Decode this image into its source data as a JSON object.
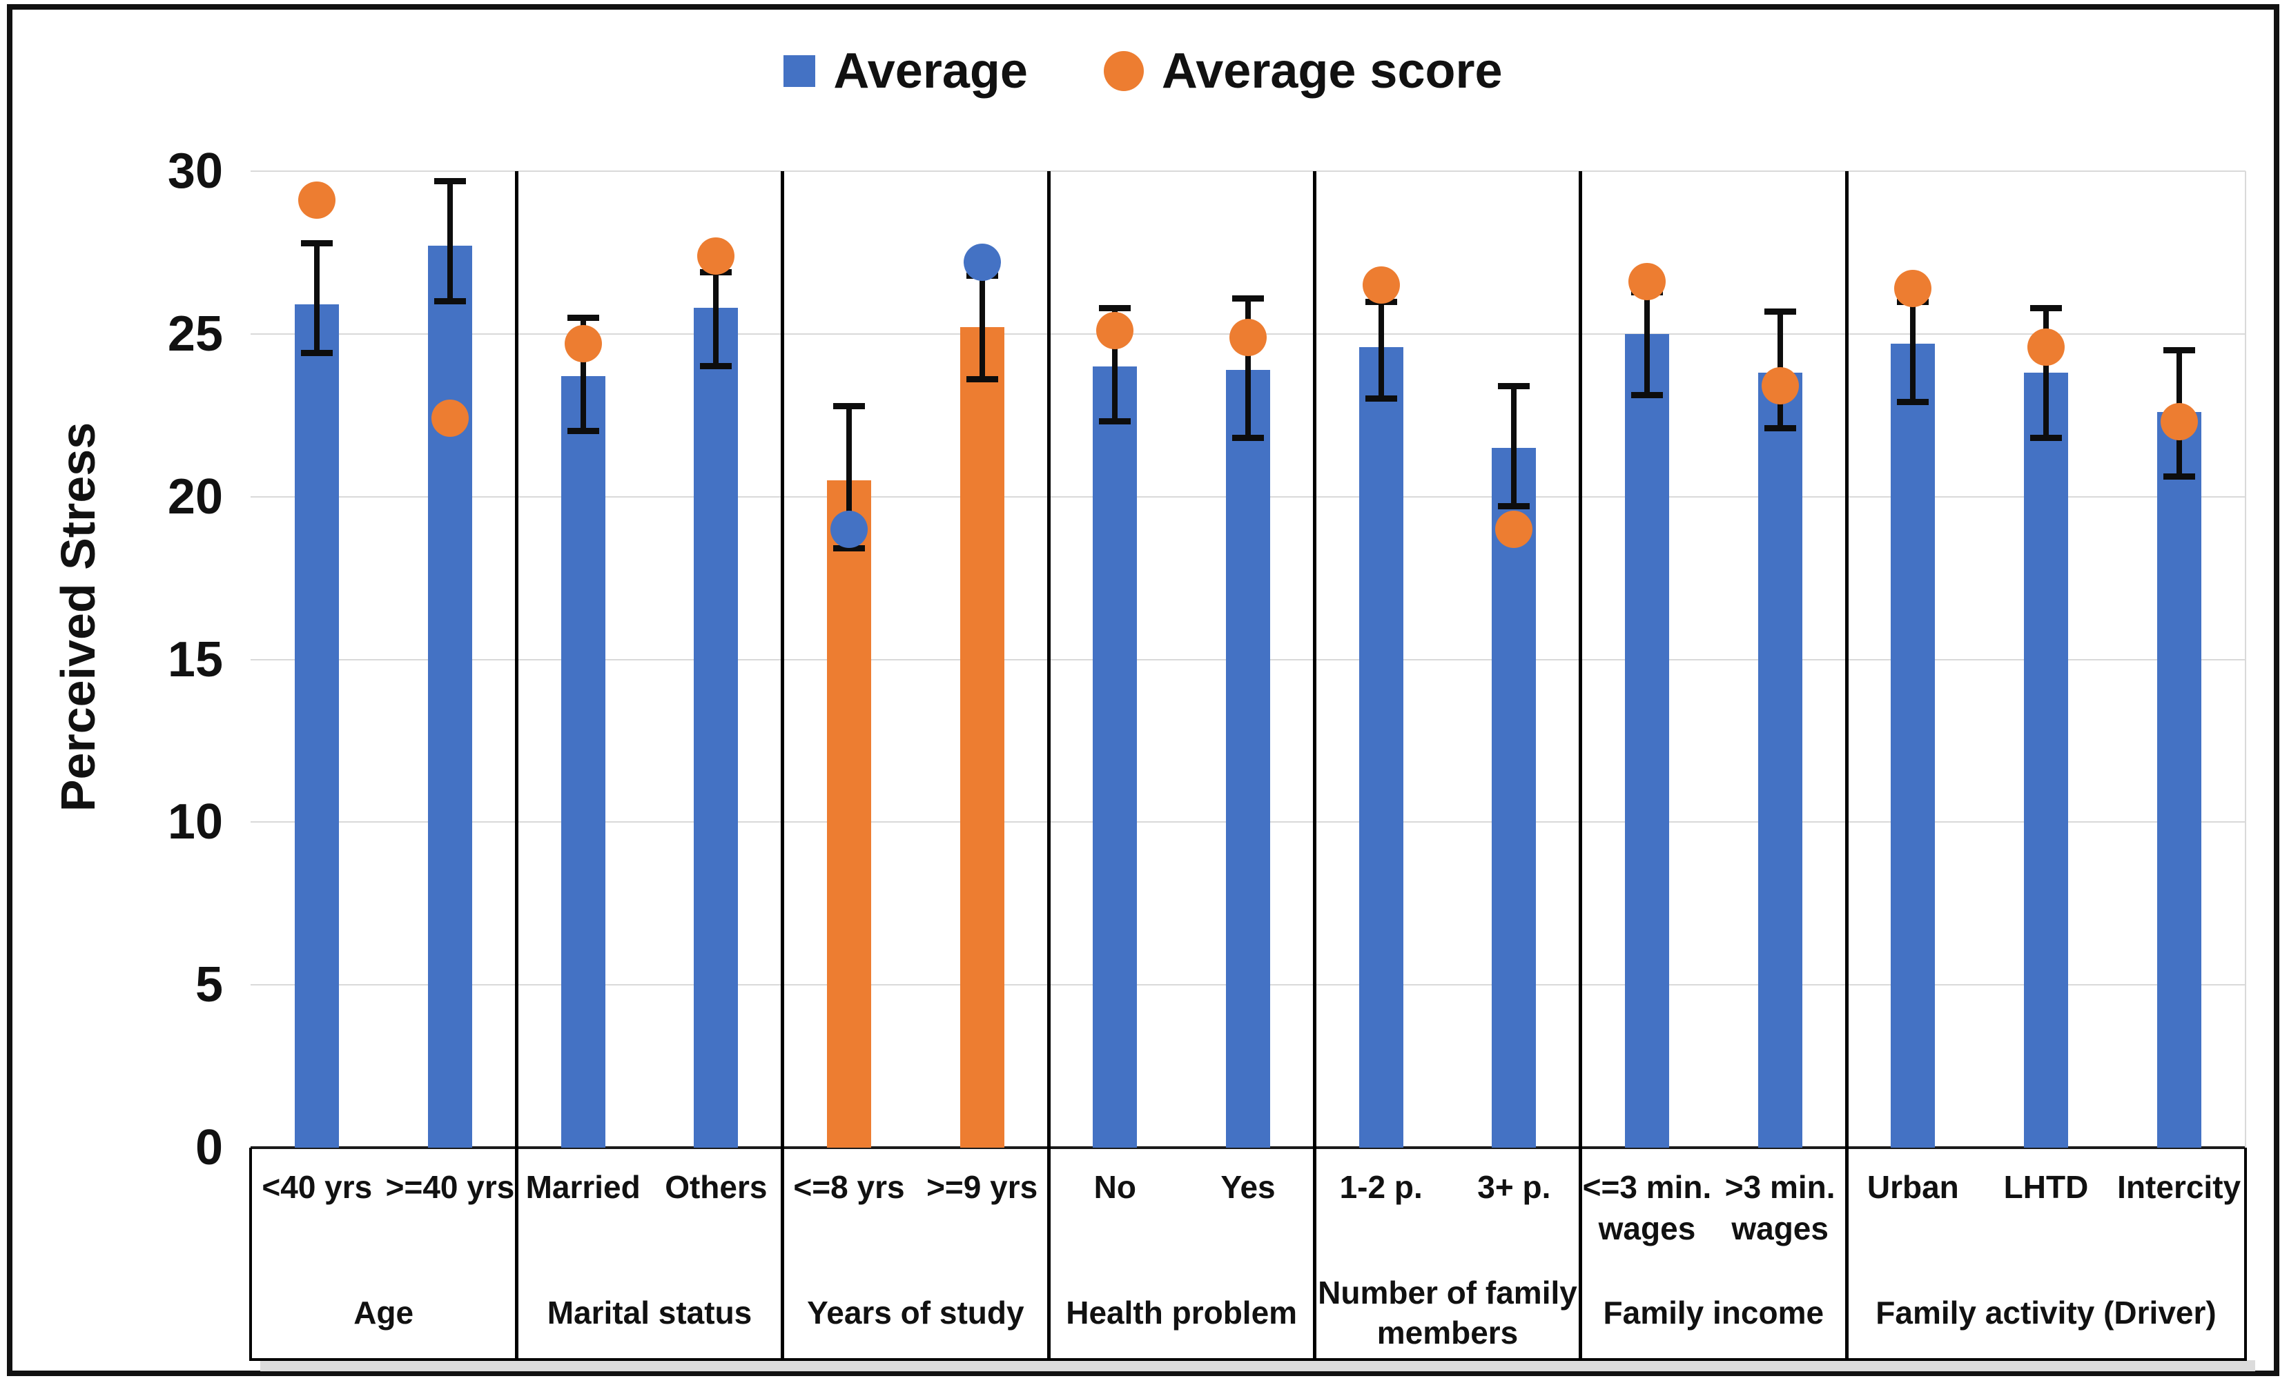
{
  "legend": [
    {
      "label": "Average",
      "marker": "square",
      "color": "#4472C4"
    },
    {
      "label": "Average score",
      "marker": "circle",
      "color": "#ED7D31"
    }
  ],
  "colors": {
    "bar_blue": "#4472C4",
    "bar_orange": "#ED7D31",
    "gridline": "#d9d9d9",
    "error_bar": "#0d0d0d"
  },
  "chart_data": {
    "type": "bar",
    "title": "",
    "xlabel": "",
    "ylabel": "Perceived Stress",
    "ylim": [
      0,
      30
    ],
    "y_ticks": [
      30,
      25,
      20,
      15,
      10,
      5,
      0
    ],
    "grid": true,
    "legend_position": "top",
    "series_note": "bars = Average with error bars; dots = Average score; Years of study group uses orange bars with blue dots",
    "groups": [
      {
        "label_lines": [
          "Age"
        ],
        "items": [
          {
            "label_lines": [
              "<40 yrs"
            ],
            "bar": 25.9,
            "bar_color": "#4472C4",
            "err_low": 24.4,
            "err_high": 27.8,
            "dot": 29.1,
            "dot_color": "#ED7D31"
          },
          {
            "label_lines": [
              ">=40 yrs"
            ],
            "bar": 27.7,
            "bar_color": "#4472C4",
            "err_low": 26.0,
            "err_high": 29.7,
            "dot": 22.4,
            "dot_color": "#ED7D31"
          }
        ]
      },
      {
        "label_lines": [
          "Marital status"
        ],
        "items": [
          {
            "label_lines": [
              "Married"
            ],
            "bar": 23.7,
            "bar_color": "#4472C4",
            "err_low": 22.0,
            "err_high": 25.5,
            "dot": 24.7,
            "dot_color": "#ED7D31"
          },
          {
            "label_lines": [
              "Others"
            ],
            "bar": 25.8,
            "bar_color": "#4472C4",
            "err_low": 24.0,
            "err_high": 26.9,
            "dot": 27.4,
            "dot_color": "#ED7D31"
          }
        ]
      },
      {
        "label_lines": [
          "Years of study"
        ],
        "items": [
          {
            "label_lines": [
              "<=8 yrs"
            ],
            "bar": 20.5,
            "bar_color": "#ED7D31",
            "err_low": 18.4,
            "err_high": 22.8,
            "dot": 19.0,
            "dot_color": "#4472C4"
          },
          {
            "label_lines": [
              ">=9 yrs"
            ],
            "bar": 25.2,
            "bar_color": "#ED7D31",
            "err_low": 23.6,
            "err_high": 26.8,
            "dot": 27.2,
            "dot_color": "#4472C4"
          }
        ]
      },
      {
        "label_lines": [
          "Health problem"
        ],
        "items": [
          {
            "label_lines": [
              "No"
            ],
            "bar": 24.0,
            "bar_color": "#4472C4",
            "err_low": 22.3,
            "err_high": 25.8,
            "dot": 25.1,
            "dot_color": "#ED7D31"
          },
          {
            "label_lines": [
              "Yes"
            ],
            "bar": 23.9,
            "bar_color": "#4472C4",
            "err_low": 21.8,
            "err_high": 26.1,
            "dot": 24.9,
            "dot_color": "#ED7D31"
          }
        ]
      },
      {
        "label_lines": [
          "Number of family",
          "members"
        ],
        "items": [
          {
            "label_lines": [
              "1-2 p."
            ],
            "bar": 24.6,
            "bar_color": "#4472C4",
            "err_low": 23.0,
            "err_high": 26.0,
            "dot": 26.5,
            "dot_color": "#ED7D31"
          },
          {
            "label_lines": [
              "3+ p."
            ],
            "bar": 21.5,
            "bar_color": "#4472C4",
            "err_low": 19.7,
            "err_high": 23.4,
            "dot": 19.0,
            "dot_color": "#ED7D31"
          }
        ]
      },
      {
        "label_lines": [
          "Family income"
        ],
        "items": [
          {
            "label_lines": [
              "<=3 min.",
              "wages"
            ],
            "bar": 25.0,
            "bar_color": "#4472C4",
            "err_low": 23.1,
            "err_high": 26.3,
            "dot": 26.6,
            "dot_color": "#ED7D31"
          },
          {
            "label_lines": [
              ">3 min.",
              "wages"
            ],
            "bar": 23.8,
            "bar_color": "#4472C4",
            "err_low": 22.1,
            "err_high": 25.7,
            "dot": 23.4,
            "dot_color": "#ED7D31"
          }
        ]
      },
      {
        "label_lines": [
          "Family activity (Driver)"
        ],
        "items": [
          {
            "label_lines": [
              "Urban"
            ],
            "bar": 24.7,
            "bar_color": "#4472C4",
            "err_low": 22.9,
            "err_high": 26.0,
            "dot": 26.4,
            "dot_color": "#ED7D31"
          },
          {
            "label_lines": [
              "LHTD"
            ],
            "bar": 23.8,
            "bar_color": "#4472C4",
            "err_low": 21.8,
            "err_high": 25.8,
            "dot": 24.6,
            "dot_color": "#ED7D31"
          },
          {
            "label_lines": [
              "Intercity"
            ],
            "bar": 22.6,
            "bar_color": "#4472C4",
            "err_low": 20.6,
            "err_high": 24.5,
            "dot": 22.3,
            "dot_color": "#ED7D31"
          }
        ]
      }
    ]
  }
}
